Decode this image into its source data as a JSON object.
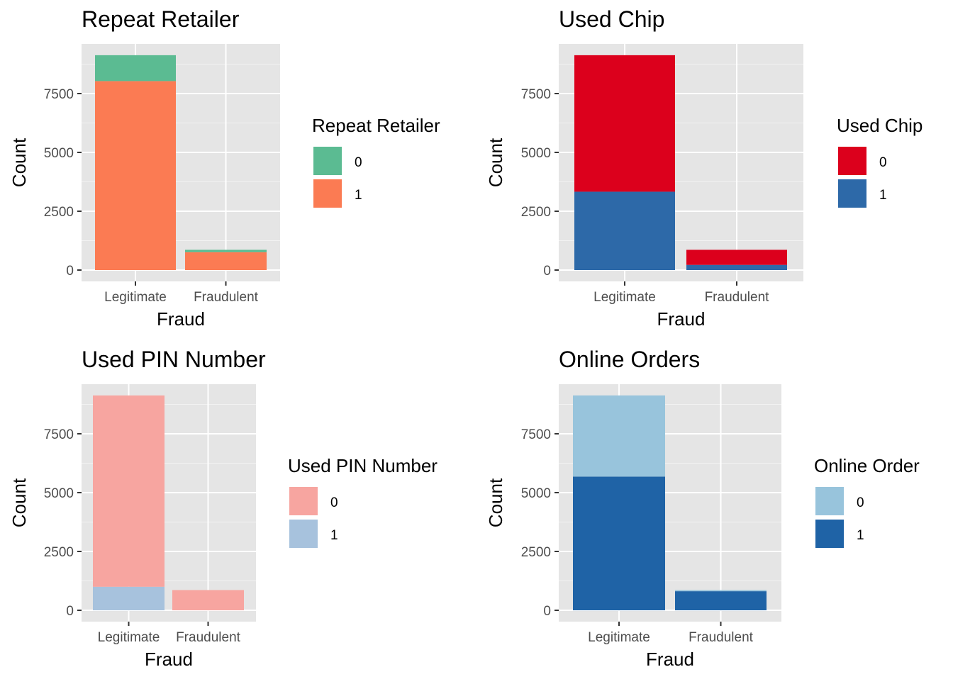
{
  "chart_data": [
    {
      "type": "bar",
      "stacked": true,
      "title": "Repeat Retailer",
      "xlabel": "Fraud",
      "ylabel": "Count",
      "categories": [
        "Legitimate",
        "Fraudulent"
      ],
      "ylim": [
        0,
        9500
      ],
      "yticks": [
        0,
        2500,
        5000,
        7500
      ],
      "ytick_labels": [
        "0",
        "2500",
        "5000",
        "7500"
      ],
      "grid": true,
      "legend_title": "Repeat Retailer",
      "legend_position": "right",
      "series": [
        {
          "name": "0",
          "color": "#5bbb92",
          "values": [
            1100,
            100
          ]
        },
        {
          "name": "1",
          "color": "#fb7b53",
          "values": [
            8030,
            760
          ]
        }
      ]
    },
    {
      "type": "bar",
      "stacked": true,
      "title": "Used Chip",
      "xlabel": "Fraud",
      "ylabel": "Count",
      "categories": [
        "Legitimate",
        "Fraudulent"
      ],
      "ylim": [
        0,
        9500
      ],
      "yticks": [
        0,
        2500,
        5000,
        7500
      ],
      "ytick_labels": [
        "0",
        "2500",
        "5000",
        "7500"
      ],
      "grid": true,
      "legend_title": "Used Chip",
      "legend_position": "right",
      "series": [
        {
          "name": "0",
          "color": "#dc001c",
          "values": [
            5800,
            640
          ]
        },
        {
          "name": "1",
          "color": "#2d69a8",
          "values": [
            3330,
            220
          ]
        }
      ]
    },
    {
      "type": "bar",
      "stacked": true,
      "title": "Used PIN Number",
      "xlabel": "Fraud",
      "ylabel": "Count",
      "categories": [
        "Legitimate",
        "Fraudulent"
      ],
      "ylim": [
        0,
        9500
      ],
      "yticks": [
        0,
        2500,
        5000,
        7500
      ],
      "ytick_labels": [
        "0",
        "2500",
        "5000",
        "7500"
      ],
      "grid": true,
      "legend_title": "Used PIN Number",
      "legend_position": "right",
      "series": [
        {
          "name": "0",
          "color": "#f7a5a0",
          "values": [
            8130,
            860
          ]
        },
        {
          "name": "1",
          "color": "#a7c2dd",
          "values": [
            1000,
            0
          ]
        }
      ]
    },
    {
      "type": "bar",
      "stacked": true,
      "title": "Online Orders",
      "xlabel": "Fraud",
      "ylabel": "Count",
      "categories": [
        "Legitimate",
        "Fraudulent"
      ],
      "ylim": [
        0,
        9500
      ],
      "yticks": [
        0,
        2500,
        5000,
        7500
      ],
      "ytick_labels": [
        "0",
        "2500",
        "5000",
        "7500"
      ],
      "grid": true,
      "legend_title": "Online Order",
      "legend_position": "right",
      "series": [
        {
          "name": "0",
          "color": "#98c4dc",
          "values": [
            3450,
            50
          ]
        },
        {
          "name": "1",
          "color": "#1f63a6",
          "values": [
            5680,
            810
          ]
        }
      ]
    }
  ]
}
